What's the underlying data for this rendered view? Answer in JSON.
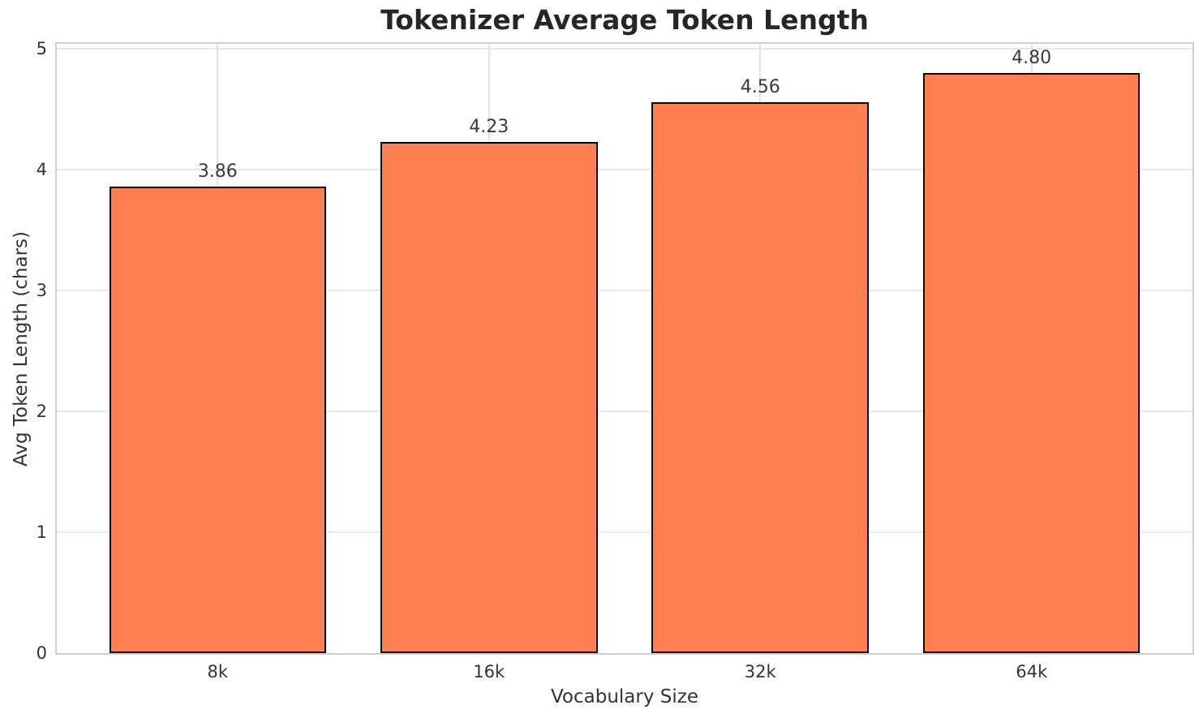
{
  "chart_data": {
    "type": "bar",
    "title": "Tokenizer Average Token Length",
    "xlabel": "Vocabulary Size",
    "ylabel": "Avg Token Length (chars)",
    "categories": [
      "8k",
      "16k",
      "32k",
      "64k"
    ],
    "values": [
      3.86,
      4.23,
      4.56,
      4.8
    ],
    "value_labels": [
      "3.86",
      "4.23",
      "4.56",
      "4.80"
    ],
    "yticks": [
      0,
      1,
      2,
      3,
      4,
      5
    ],
    "ylim": [
      0,
      5.04
    ],
    "grid": true,
    "legend": "none",
    "bar_color": "#FF7F50",
    "bar_edge_color": "#000000",
    "grid_color": "#e7e7e7",
    "spine_color": "#cfcfcf",
    "text_color": "#333333",
    "title_color": "#262626",
    "background_color": "#ffffff"
  }
}
